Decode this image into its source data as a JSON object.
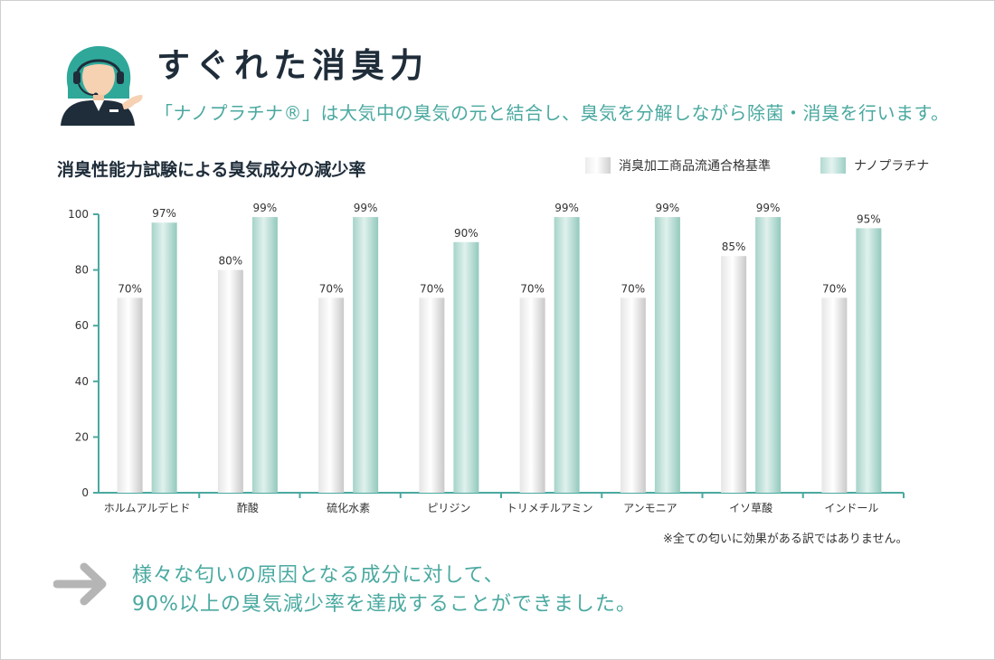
{
  "title": "すぐれた消臭力",
  "subtitle": "「ナノプラチナ®」は大気中の臭気の元と結合し、臭気を分解しながら除菌・消臭を行います。",
  "chart_data": {
    "type": "bar",
    "title": "消臭性能力試験による臭気成分の減少率",
    "xlabel": "",
    "ylabel": "",
    "ylim": [
      0,
      100
    ],
    "yticks": [
      0,
      20,
      40,
      60,
      80,
      100
    ],
    "grid": false,
    "legend_position": "top-right",
    "categories": [
      "ホルムアルデヒド",
      "酢酸",
      "硫化水素",
      "ピリジン",
      "トリメチルアミン",
      "アンモニア",
      "イソ草酸",
      "インドール"
    ],
    "series": [
      {
        "name": "消臭加工商品流通合格基準",
        "values": [
          70,
          80,
          70,
          70,
          70,
          70,
          85,
          70
        ],
        "labels": [
          "70%",
          "80%",
          "70%",
          "70%",
          "70%",
          "70%",
          "85%",
          "70%"
        ],
        "color": "#dcdcdc"
      },
      {
        "name": "ナノプラチナ",
        "values": [
          97,
          99,
          99,
          90,
          99,
          99,
          99,
          95
        ],
        "labels": [
          "97%",
          "99%",
          "99%",
          "90%",
          "99%",
          "99%",
          "99%",
          "95%"
        ],
        "color": "#a9d6cc"
      }
    ],
    "axis_color": "#4aa9a0"
  },
  "footnote": "※全ての匂いに効果がある訳ではありません。",
  "conclusion": {
    "line1": "様々な匂いの原因となる成分に対して、",
    "line2": "90%以上の臭気減少率を達成することができました。"
  },
  "icons": {
    "avatar": "support-operator-icon",
    "arrow": "arrow-right-icon"
  },
  "colors": {
    "accent": "#4aa9a0",
    "title": "#1f2d3a",
    "arrow": "#b5b5b5"
  }
}
